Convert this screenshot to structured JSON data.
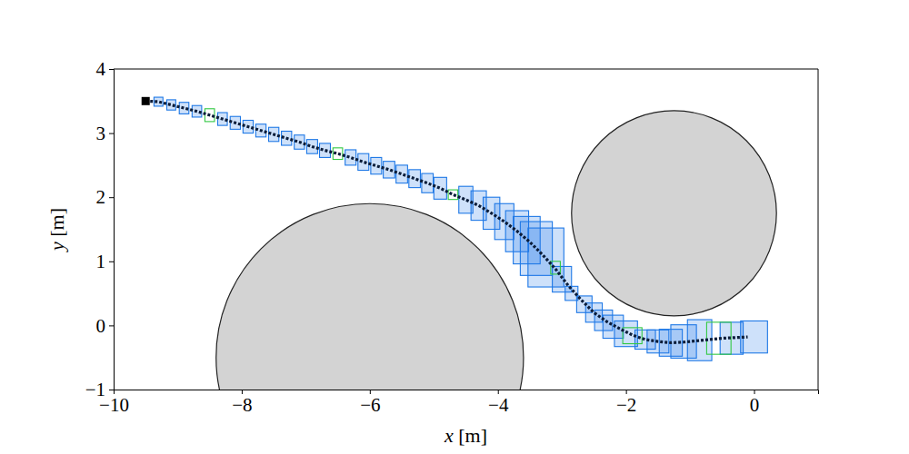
{
  "chart_data": {
    "type": "trajectory",
    "xlabel": "x [m]",
    "ylabel": "y [m]",
    "xlim": [
      -10,
      1
    ],
    "ylim": [
      -1,
      4
    ],
    "xticks": [
      -10,
      -8,
      -6,
      -4,
      -2,
      0
    ],
    "yticks": [
      -1,
      0,
      1,
      2,
      3,
      4
    ],
    "series": [
      {
        "type": "circle",
        "color": "#d3d3d3",
        "x": [
          -6.0,
          -1.25
        ],
        "values": [
          -0.5,
          1.75
        ],
        "radius": [
          2.4,
          1.6
        ]
      },
      {
        "type": "box",
        "color": "#1e78e6",
        "x": [
          -9.3,
          -9.1,
          -8.9,
          -8.7,
          -8.3,
          -8.1,
          -7.9,
          -7.7,
          -7.5,
          -7.3,
          -7.1,
          -6.9,
          -6.7,
          -6.3,
          -6.1,
          -5.9,
          -5.7,
          -5.5,
          -5.3,
          -5.1,
          -4.9,
          -4.5,
          -4.3,
          -4.1,
          -3.9,
          -3.7,
          -3.55,
          -3.4,
          -3.25,
          -3.0,
          -2.85,
          -2.65,
          -2.5,
          -2.35,
          -2.2,
          -2.0,
          -1.7,
          -1.5,
          -1.3,
          -1.1,
          -0.85,
          -0.35,
          0.0
        ],
        "values": [
          3.49,
          3.44,
          3.39,
          3.34,
          3.22,
          3.16,
          3.1,
          3.04,
          2.98,
          2.92,
          2.86,
          2.79,
          2.73,
          2.62,
          2.55,
          2.49,
          2.43,
          2.36,
          2.29,
          2.22,
          2.14,
          1.96,
          1.87,
          1.75,
          1.62,
          1.47,
          1.33,
          1.2,
          1.06,
          0.72,
          0.5,
          0.33,
          0.2,
          0.08,
          -0.02,
          -0.13,
          -0.22,
          -0.25,
          -0.27,
          -0.25,
          -0.23,
          -0.2,
          -0.18
        ],
        "width": [
          0.14,
          0.14,
          0.15,
          0.15,
          0.15,
          0.16,
          0.16,
          0.16,
          0.16,
          0.16,
          0.16,
          0.17,
          0.17,
          0.17,
          0.17,
          0.17,
          0.18,
          0.18,
          0.18,
          0.18,
          0.2,
          0.22,
          0.24,
          0.26,
          0.3,
          0.36,
          0.42,
          0.5,
          0.56,
          0.3,
          0.2,
          0.24,
          0.26,
          0.28,
          0.32,
          0.36,
          0.32,
          0.34,
          0.36,
          0.4,
          0.38,
          0.36,
          0.42
        ],
        "height": [
          0.14,
          0.16,
          0.18,
          0.18,
          0.2,
          0.2,
          0.2,
          0.2,
          0.22,
          0.22,
          0.22,
          0.22,
          0.22,
          0.24,
          0.26,
          0.26,
          0.26,
          0.28,
          0.28,
          0.3,
          0.34,
          0.42,
          0.46,
          0.5,
          0.56,
          0.64,
          0.74,
          0.84,
          0.92,
          0.4,
          0.22,
          0.26,
          0.3,
          0.32,
          0.36,
          0.4,
          0.3,
          0.36,
          0.42,
          0.52,
          0.64,
          0.5,
          0.5
        ]
      },
      {
        "type": "box",
        "color": "#33c844",
        "x": [
          -8.5,
          -6.5,
          -4.7,
          -3.1,
          -1.9,
          -0.55
        ],
        "values": [
          3.28,
          2.68,
          2.04,
          0.9,
          -0.16,
          -0.2
        ],
        "width": [
          0.15,
          0.15,
          0.15,
          0.15,
          0.3,
          0.38
        ],
        "height": [
          0.2,
          0.18,
          0.15,
          0.2,
          0.25,
          0.5
        ]
      },
      {
        "type": "line",
        "color": "#0b1d3a",
        "line_style": "dashed",
        "x": [
          -9.5,
          -9.3,
          -9.1,
          -8.9,
          -8.7,
          -8.5,
          -8.3,
          -8.1,
          -7.9,
          -7.7,
          -7.5,
          -7.3,
          -7.1,
          -6.9,
          -6.7,
          -6.5,
          -6.3,
          -6.1,
          -5.9,
          -5.7,
          -5.5,
          -5.3,
          -5.1,
          -4.9,
          -4.7,
          -4.5,
          -4.3,
          -4.1,
          -3.9,
          -3.7,
          -3.5,
          -3.3,
          -3.1,
          -2.9,
          -2.7,
          -2.5,
          -2.3,
          -2.1,
          -1.9,
          -1.7,
          -1.5,
          -1.3,
          -1.1,
          -0.9,
          -0.7,
          -0.5,
          -0.3,
          -0.1
        ],
        "values": [
          3.5,
          3.49,
          3.44,
          3.39,
          3.34,
          3.28,
          3.22,
          3.16,
          3.1,
          3.04,
          2.98,
          2.92,
          2.86,
          2.79,
          2.73,
          2.68,
          2.62,
          2.55,
          2.49,
          2.43,
          2.36,
          2.29,
          2.22,
          2.14,
          2.04,
          1.96,
          1.87,
          1.75,
          1.62,
          1.47,
          1.3,
          1.1,
          0.88,
          0.62,
          0.4,
          0.2,
          0.06,
          -0.05,
          -0.15,
          -0.22,
          -0.25,
          -0.27,
          -0.26,
          -0.24,
          -0.22,
          -0.2,
          -0.19,
          -0.18
        ]
      },
      {
        "type": "scatter",
        "color": "#000000",
        "marker": "square",
        "x": [
          -9.5
        ],
        "values": [
          3.5
        ]
      }
    ]
  }
}
